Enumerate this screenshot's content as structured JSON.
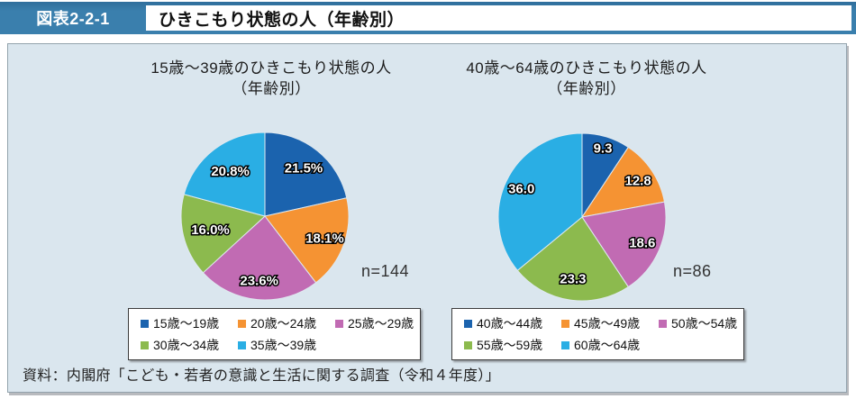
{
  "header": {
    "figure_label": "図表2-2-1",
    "title": "ひきこもり状態の人（年齢別）"
  },
  "source": "資料：内閣府「こども・若者の意識と生活に関する調査（令和４年度）」",
  "colors": {
    "titlebar_blue": "#3a7fad",
    "panel_background": "#dae6ee",
    "slice_blue": "#1b63ae",
    "slice_orange": "#f59333",
    "slice_purple": "#c16bb3",
    "slice_green": "#8cba4e",
    "slice_cyan": "#2aaee4"
  },
  "chart_data": [
    {
      "type": "pie",
      "title_line1": "15歳～39歳のひきこもり状態の人",
      "title_line2": "（年齢別）",
      "n_label": "n=144",
      "legend_position": "bottom",
      "start_angle_deg": 0,
      "direction": "clockwise",
      "categories": [
        "15歳～19歳",
        "20歳～24歳",
        "25歳～29歳",
        "30歳～34歳",
        "35歳～39歳"
      ],
      "values": [
        21.5,
        18.1,
        23.6,
        16.0,
        20.8
      ],
      "value_labels": [
        "21.5%",
        "18.1%",
        "23.6%",
        "16.0%",
        "20.8%"
      ],
      "slice_colors": [
        "#1b63ae",
        "#f59333",
        "#c16bb3",
        "#8cba4e",
        "#2aaee4"
      ]
    },
    {
      "type": "pie",
      "title_line1": "40歳～64歳のひきこもり状態の人",
      "title_line2": "（年齢別）",
      "n_label": "n=86",
      "legend_position": "bottom",
      "start_angle_deg": 0,
      "direction": "clockwise",
      "categories": [
        "40歳～44歳",
        "45歳～49歳",
        "50歳～54歳",
        "55歳～59歳",
        "60歳～64歳"
      ],
      "values": [
        9.3,
        12.8,
        18.6,
        23.3,
        36.0
      ],
      "value_labels": [
        "9.3",
        "12.8",
        "18.6",
        "23.3",
        "36.0"
      ],
      "slice_colors": [
        "#1b63ae",
        "#f59333",
        "#c16bb3",
        "#8cba4e",
        "#2aaee4"
      ]
    }
  ]
}
